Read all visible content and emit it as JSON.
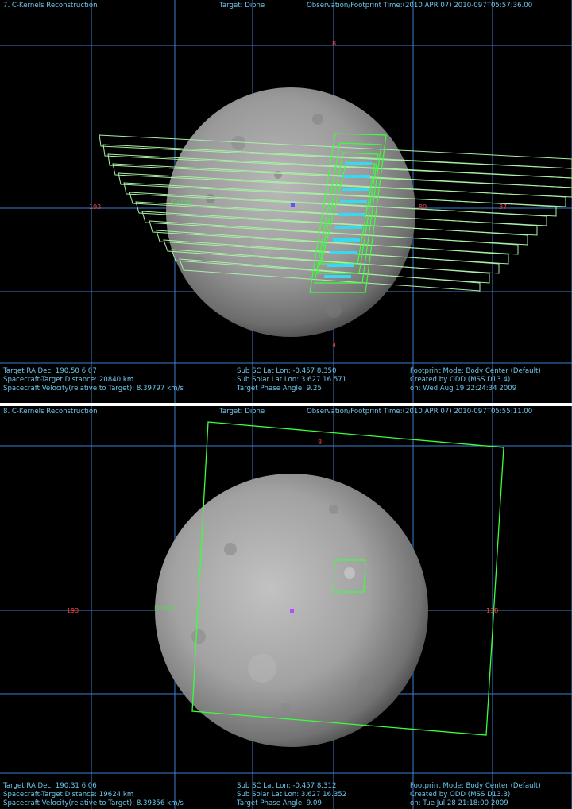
{
  "panels": [
    {
      "header": {
        "left": "7. C-Kernels Reconstruction",
        "center": "Target: Dione",
        "right": "Observation/Footprint Time:(2010 APR 07) 2010-097T05:57:36.00"
      },
      "grid_labels": {
        "top": "8",
        "left": "193",
        "right_a": "89",
        "right_b": "37",
        "bottom": "4"
      },
      "target_label": "Dione",
      "footer": {
        "col1": [
          "Target RA Dec: 190.50   6.07",
          "Spacecraft-Target Distance:   20840 km",
          "Spacecraft Velocity(relative to Target): 8.39797 km/s"
        ],
        "col2": [
          "Sub SC Lat Lon: -0.457   8.350",
          "Sub Solar Lat Lon:  3.627  16.571",
          "Target Phase Angle:  9.25"
        ],
        "col3": [
          "Footprint Mode: Body Center (Default)",
          "Created by ODD (MSS D13.4)",
          "on: Wed Aug 19 22:24:34 2009"
        ]
      }
    },
    {
      "header": {
        "left": "8. C-Kernels Reconstruction",
        "center": "Target: Dione",
        "right": "Observation/Footprint Time:(2010 APR 07) 2010-097T05:55:11.00"
      },
      "grid_labels": {
        "top": "8",
        "left": "193",
        "right_a": "138"
      },
      "target_label": "Dione",
      "footer": {
        "col1": [
          "Target RA Dec: 190.31   6.06",
          "Spacecraft-Target Distance:   19624 km",
          "Spacecraft Velocity(relative to Target): 8.39356 km/s"
        ],
        "col2": [
          "Sub SC Lat Lon: -0.457   8.312",
          "Sub Solar Lat Lon:  3.627  16.352",
          "Target Phase Angle:  9.09"
        ],
        "col3": [
          "Footprint Mode: Body Center (Default)",
          "Created by ODD (MSS D13.3)",
          "on: Tue Jul 28 21:18:00 2009"
        ]
      },
      "colors": {
        "background": "#000000",
        "grid": "#3d7fd0",
        "footprint": "#3cdc3c",
        "text": "#6cc7ec",
        "label": "#ff4040"
      }
    }
  ]
}
